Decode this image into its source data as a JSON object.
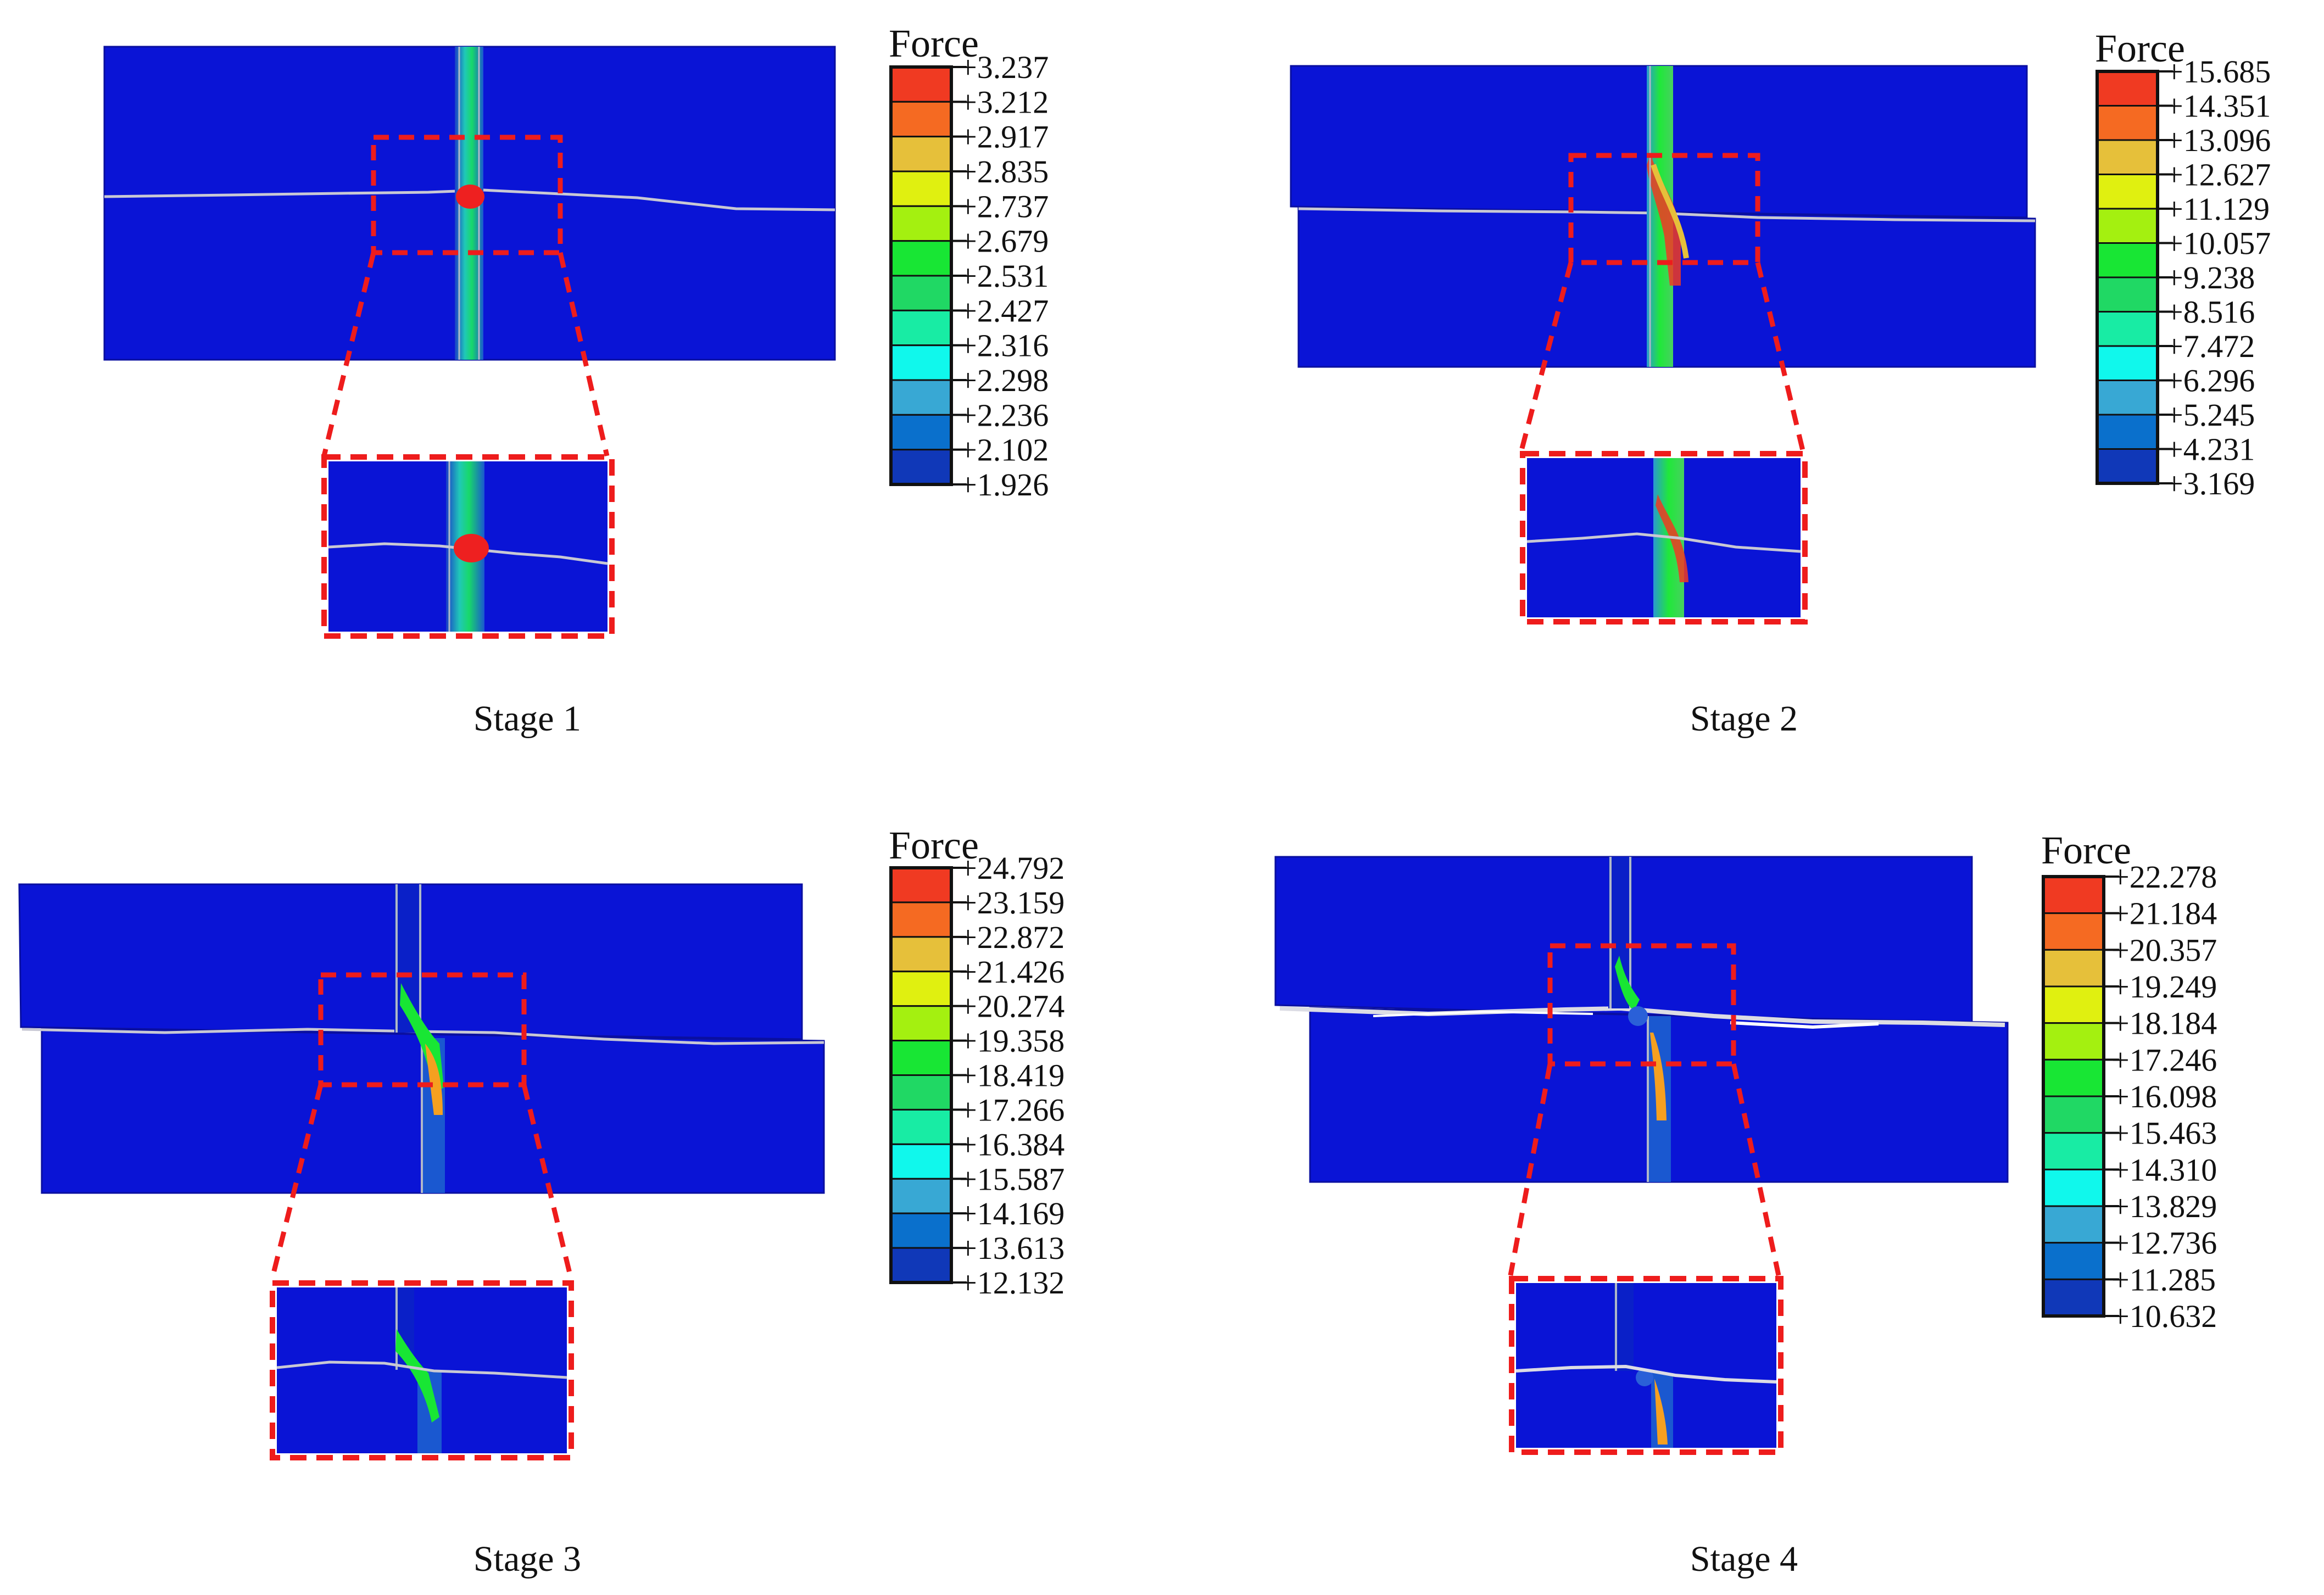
{
  "colors": {
    "background": "#ffffff",
    "block": "#0a14d6",
    "block_edge": "#0a0fa0",
    "highlight": "#ee1c1c",
    "crack": "#c8c8d4",
    "legend_steps": [
      "#f03a22",
      "#f56a22",
      "#e6c03a",
      "#e0f010",
      "#a4f010",
      "#18e634",
      "#20d864",
      "#18eca4",
      "#10f8ec",
      "#38a8d4",
      "#0a70cc",
      "#1038b8"
    ]
  },
  "legend_title": "Force",
  "stages": [
    {
      "caption": "Stage 1",
      "legend": [
        "+3.237",
        "+3.212",
        "+2.917",
        "+2.835",
        "+2.737",
        "+2.679",
        "+2.531",
        "+2.427",
        "+2.316",
        "+2.298",
        "+2.236",
        "+2.102",
        "+1.926"
      ]
    },
    {
      "caption": "Stage 2",
      "legend": [
        "+15.685",
        "+14.351",
        "+13.096",
        "+12.627",
        "+11.129",
        "+10.057",
        "+9.238",
        "+8.516",
        "+7.472",
        "+6.296",
        "+5.245",
        "+4.231",
        "+3.169"
      ]
    },
    {
      "caption": "Stage 3",
      "legend": [
        "+24.792",
        "+23.159",
        "+22.872",
        "+21.426",
        "+20.274",
        "+19.358",
        "+18.419",
        "+17.266",
        "+16.384",
        "+15.587",
        "+14.169",
        "+13.613",
        "+12.132"
      ]
    },
    {
      "caption": "Stage 4",
      "legend": [
        "+22.278",
        "+21.184",
        "+20.357",
        "+19.249",
        "+18.184",
        "+17.246",
        "+16.098",
        "+15.463",
        "+14.310",
        "+13.829",
        "+12.736",
        "+11.285",
        "+10.632"
      ]
    }
  ]
}
